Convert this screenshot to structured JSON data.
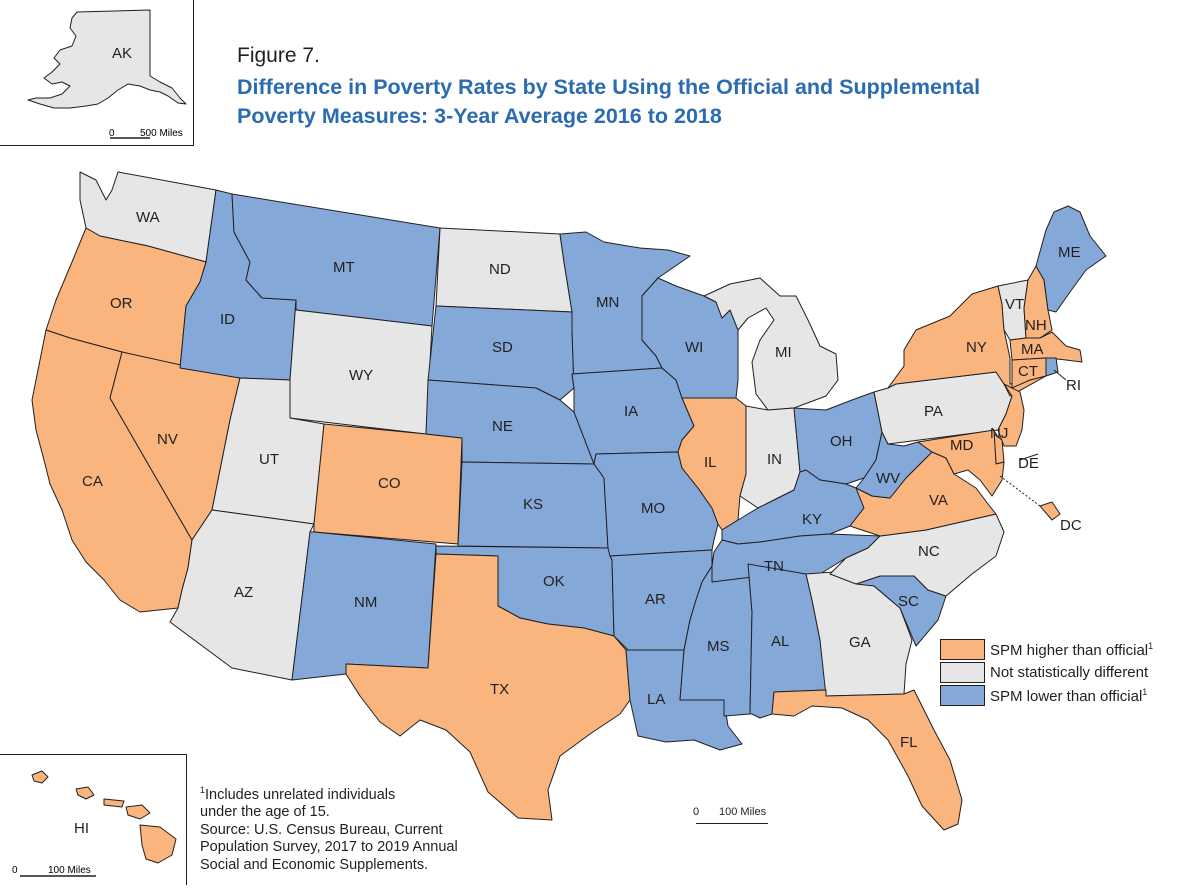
{
  "figure": {
    "label": "Figure 7.",
    "title_line1": "Difference in Poverty Rates by State Using the Official and Supplemental",
    "title_line2": "Poverty Measures: 3-Year Average 2016 to 2018"
  },
  "colors": {
    "spm_higher": "#f9b57d",
    "not_different": "#e6e6e7",
    "spm_lower": "#84a9d9",
    "title": "#2b6cb0"
  },
  "legend": {
    "items": [
      {
        "key": "spm_higher",
        "label": "SPM higher than official",
        "sup": "1"
      },
      {
        "key": "not_different",
        "label": "Not statistically different",
        "sup": ""
      },
      {
        "key": "spm_lower",
        "label": "SPM lower than official",
        "sup": "1"
      }
    ]
  },
  "states": {
    "WA": "not_different",
    "OR": "spm_higher",
    "CA": "spm_higher",
    "NV": "spm_higher",
    "ID": "spm_lower",
    "MT": "spm_lower",
    "WY": "not_different",
    "UT": "not_different",
    "AZ": "not_different",
    "CO": "spm_higher",
    "NM": "spm_lower",
    "ND": "not_different",
    "SD": "spm_lower",
    "NE": "spm_lower",
    "KS": "spm_lower",
    "OK": "spm_lower",
    "TX": "spm_higher",
    "MN": "spm_lower",
    "IA": "spm_lower",
    "MO": "spm_lower",
    "AR": "spm_lower",
    "LA": "spm_lower",
    "WI": "spm_lower",
    "IL": "spm_higher",
    "MS": "spm_lower",
    "MI": "not_different",
    "IN": "not_different",
    "OH": "spm_lower",
    "KY": "spm_lower",
    "TN": "spm_lower",
    "AL": "spm_lower",
    "GA": "not_different",
    "FL": "spm_higher",
    "SC": "spm_lower",
    "NC": "not_different",
    "VA": "spm_higher",
    "WV": "spm_lower",
    "PA": "not_different",
    "NY": "spm_higher",
    "VT": "not_different",
    "NH": "spm_higher",
    "ME": "spm_lower",
    "MA": "spm_higher",
    "CT": "spm_higher",
    "RI": "spm_lower",
    "NJ": "spm_higher",
    "DE": "spm_higher",
    "MD": "spm_higher",
    "DC": "spm_higher",
    "AK": "not_different",
    "HI": "spm_higher"
  },
  "insets": {
    "ak_label": "AK",
    "ak_scale_zero": "0",
    "ak_scale_label": "500 Miles",
    "hi_label": "HI",
    "hi_scale_zero": "0",
    "hi_scale_label": "100 Miles"
  },
  "main_scale": {
    "zero": "0",
    "label": "100 Miles"
  },
  "notes": {
    "footnote_mark": "1",
    "line1": "Includes unrelated individuals",
    "line2": "under the age of 15.",
    "line3": "Source: U.S. Census Bureau, Current",
    "line4": "Population Survey, 2017 to 2019 Annual",
    "line5": "Social and Economic Supplements."
  }
}
